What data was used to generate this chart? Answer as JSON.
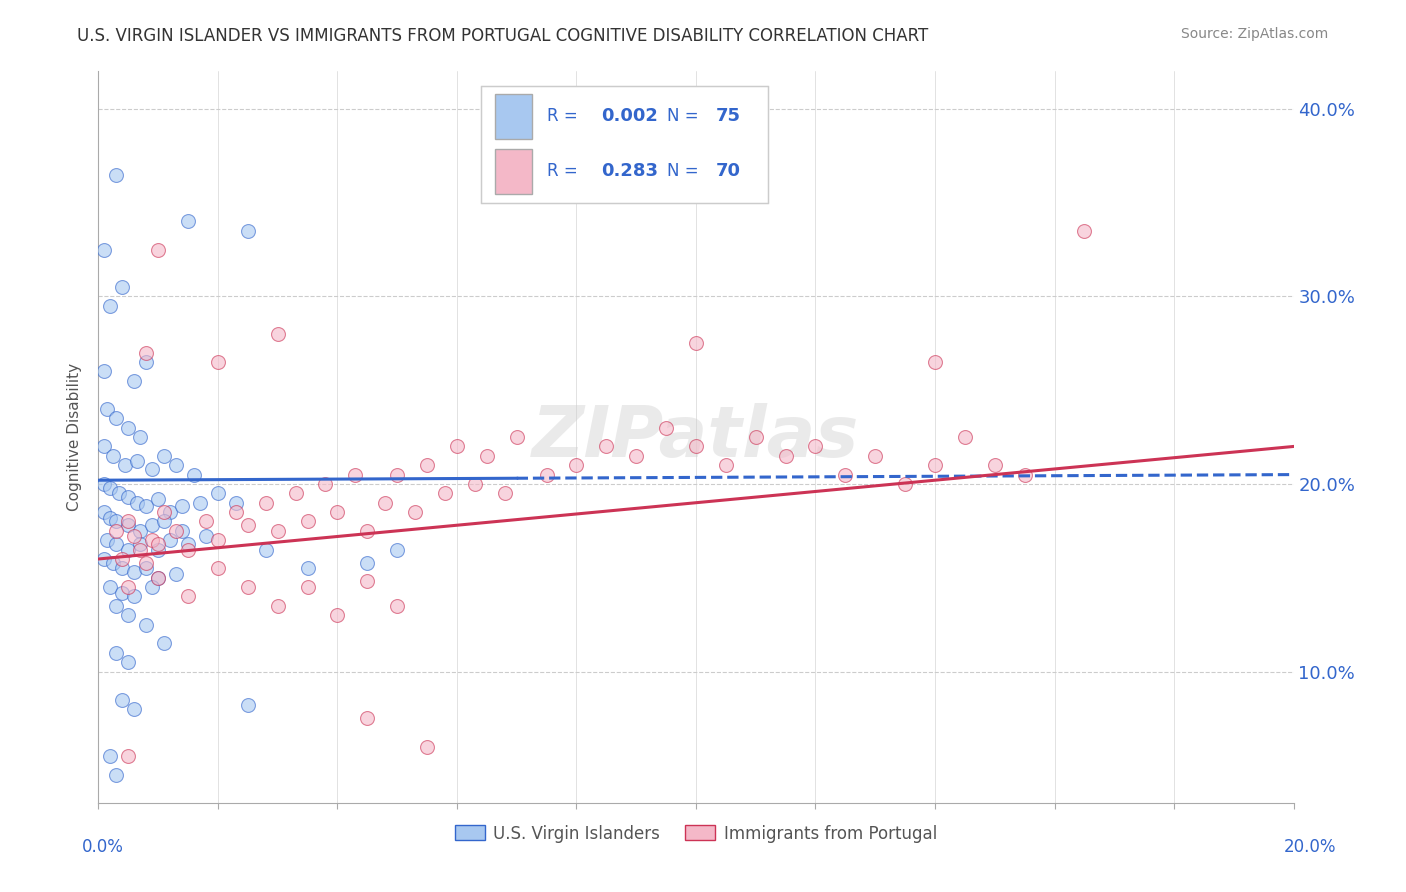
{
  "title": "U.S. VIRGIN ISLANDER VS IMMIGRANTS FROM PORTUGAL COGNITIVE DISABILITY CORRELATION CHART",
  "source_text": "Source: ZipAtlas.com",
  "ylabel": "Cognitive Disability",
  "xlim": [
    0.0,
    20.0
  ],
  "ylim": [
    3.0,
    42.0
  ],
  "yticks": [
    10.0,
    20.0,
    30.0,
    40.0
  ],
  "xticks": [
    0.0,
    2.0,
    4.0,
    6.0,
    8.0,
    10.0,
    12.0,
    14.0,
    16.0,
    18.0,
    20.0
  ],
  "legend_label1": "U.S. Virgin Islanders",
  "legend_label2": "Immigrants from Portugal",
  "blue_color": "#a8c8f0",
  "pink_color": "#f4b8c8",
  "blue_line_color": "#3366cc",
  "pink_line_color": "#cc3355",
  "blue_r": 0.002,
  "pink_r": 0.283,
  "blue_n": 75,
  "pink_n": 70,
  "text_color_blue": "#3366cc",
  "text_color_dark": "#555555",
  "blue_scatter": [
    [
      0.1,
      32.5
    ],
    [
      0.3,
      36.5
    ],
    [
      1.5,
      34.0
    ],
    [
      2.5,
      33.5
    ],
    [
      0.2,
      29.5
    ],
    [
      0.4,
      30.5
    ],
    [
      0.1,
      26.0
    ],
    [
      0.8,
      26.5
    ],
    [
      0.6,
      25.5
    ],
    [
      0.15,
      24.0
    ],
    [
      0.3,
      23.5
    ],
    [
      0.5,
      23.0
    ],
    [
      0.7,
      22.5
    ],
    [
      0.1,
      22.0
    ],
    [
      0.25,
      21.5
    ],
    [
      0.45,
      21.0
    ],
    [
      0.65,
      21.2
    ],
    [
      0.9,
      20.8
    ],
    [
      1.1,
      21.5
    ],
    [
      1.3,
      21.0
    ],
    [
      1.6,
      20.5
    ],
    [
      0.1,
      20.0
    ],
    [
      0.2,
      19.8
    ],
    [
      0.35,
      19.5
    ],
    [
      0.5,
      19.3
    ],
    [
      0.65,
      19.0
    ],
    [
      0.8,
      18.8
    ],
    [
      1.0,
      19.2
    ],
    [
      1.2,
      18.5
    ],
    [
      1.4,
      18.8
    ],
    [
      1.7,
      19.0
    ],
    [
      2.0,
      19.5
    ],
    [
      2.3,
      19.0
    ],
    [
      0.1,
      18.5
    ],
    [
      0.2,
      18.2
    ],
    [
      0.3,
      18.0
    ],
    [
      0.5,
      17.8
    ],
    [
      0.7,
      17.5
    ],
    [
      0.9,
      17.8
    ],
    [
      1.1,
      18.0
    ],
    [
      1.4,
      17.5
    ],
    [
      0.15,
      17.0
    ],
    [
      0.3,
      16.8
    ],
    [
      0.5,
      16.5
    ],
    [
      0.7,
      16.8
    ],
    [
      1.0,
      16.5
    ],
    [
      1.2,
      17.0
    ],
    [
      1.5,
      16.8
    ],
    [
      1.8,
      17.2
    ],
    [
      0.1,
      16.0
    ],
    [
      0.25,
      15.8
    ],
    [
      0.4,
      15.5
    ],
    [
      0.6,
      15.3
    ],
    [
      0.8,
      15.5
    ],
    [
      1.0,
      15.0
    ],
    [
      1.3,
      15.2
    ],
    [
      0.2,
      14.5
    ],
    [
      0.4,
      14.2
    ],
    [
      0.6,
      14.0
    ],
    [
      0.9,
      14.5
    ],
    [
      0.3,
      13.5
    ],
    [
      0.5,
      13.0
    ],
    [
      0.8,
      12.5
    ],
    [
      1.1,
      11.5
    ],
    [
      0.3,
      11.0
    ],
    [
      0.5,
      10.5
    ],
    [
      0.4,
      8.5
    ],
    [
      0.6,
      8.0
    ],
    [
      2.5,
      8.2
    ],
    [
      0.2,
      5.5
    ],
    [
      0.3,
      4.5
    ],
    [
      2.8,
      16.5
    ],
    [
      3.5,
      15.5
    ],
    [
      4.5,
      15.8
    ],
    [
      5.0,
      16.5
    ]
  ],
  "pink_scatter": [
    [
      0.3,
      17.5
    ],
    [
      0.5,
      18.0
    ],
    [
      0.7,
      16.5
    ],
    [
      0.9,
      17.0
    ],
    [
      1.1,
      18.5
    ],
    [
      0.4,
      16.0
    ],
    [
      0.6,
      17.2
    ],
    [
      0.8,
      15.8
    ],
    [
      1.0,
      16.8
    ],
    [
      1.3,
      17.5
    ],
    [
      1.5,
      16.5
    ],
    [
      1.8,
      18.0
    ],
    [
      2.0,
      17.0
    ],
    [
      2.3,
      18.5
    ],
    [
      2.5,
      17.8
    ],
    [
      2.8,
      19.0
    ],
    [
      3.0,
      17.5
    ],
    [
      3.3,
      19.5
    ],
    [
      3.5,
      18.0
    ],
    [
      3.8,
      20.0
    ],
    [
      4.0,
      18.5
    ],
    [
      4.3,
      20.5
    ],
    [
      4.5,
      17.5
    ],
    [
      4.8,
      19.0
    ],
    [
      5.0,
      20.5
    ],
    [
      5.3,
      18.5
    ],
    [
      5.5,
      21.0
    ],
    [
      5.8,
      19.5
    ],
    [
      6.0,
      22.0
    ],
    [
      6.3,
      20.0
    ],
    [
      6.5,
      21.5
    ],
    [
      6.8,
      19.5
    ],
    [
      7.0,
      22.5
    ],
    [
      7.5,
      20.5
    ],
    [
      8.0,
      21.0
    ],
    [
      8.5,
      22.0
    ],
    [
      9.0,
      21.5
    ],
    [
      9.5,
      23.0
    ],
    [
      10.0,
      22.0
    ],
    [
      10.5,
      21.0
    ],
    [
      11.0,
      22.5
    ],
    [
      11.5,
      21.5
    ],
    [
      12.0,
      22.0
    ],
    [
      12.5,
      20.5
    ],
    [
      13.0,
      21.5
    ],
    [
      13.5,
      20.0
    ],
    [
      14.0,
      21.0
    ],
    [
      14.5,
      22.5
    ],
    [
      15.0,
      21.0
    ],
    [
      15.5,
      20.5
    ],
    [
      0.5,
      14.5
    ],
    [
      1.0,
      15.0
    ],
    [
      1.5,
      14.0
    ],
    [
      2.0,
      15.5
    ],
    [
      2.5,
      14.5
    ],
    [
      3.0,
      13.5
    ],
    [
      3.5,
      14.5
    ],
    [
      4.0,
      13.0
    ],
    [
      4.5,
      14.8
    ],
    [
      5.0,
      13.5
    ],
    [
      1.0,
      32.5
    ],
    [
      0.8,
      27.0
    ],
    [
      2.0,
      26.5
    ],
    [
      3.0,
      28.0
    ],
    [
      16.5,
      33.5
    ],
    [
      10.0,
      27.5
    ],
    [
      14.0,
      26.5
    ],
    [
      0.5,
      5.5
    ],
    [
      4.5,
      7.5
    ],
    [
      5.5,
      6.0
    ]
  ],
  "watermark": "ZIPatlas",
  "background_color": "#ffffff",
  "grid_color": "#cccccc",
  "blue_line_solid_end": 7.0,
  "pink_line_start": 0.0,
  "pink_line_end": 20.0,
  "blue_line_y_at_0": 20.2,
  "blue_line_y_at_20": 20.5,
  "pink_line_y_at_0": 16.0,
  "pink_line_y_at_20": 22.0
}
